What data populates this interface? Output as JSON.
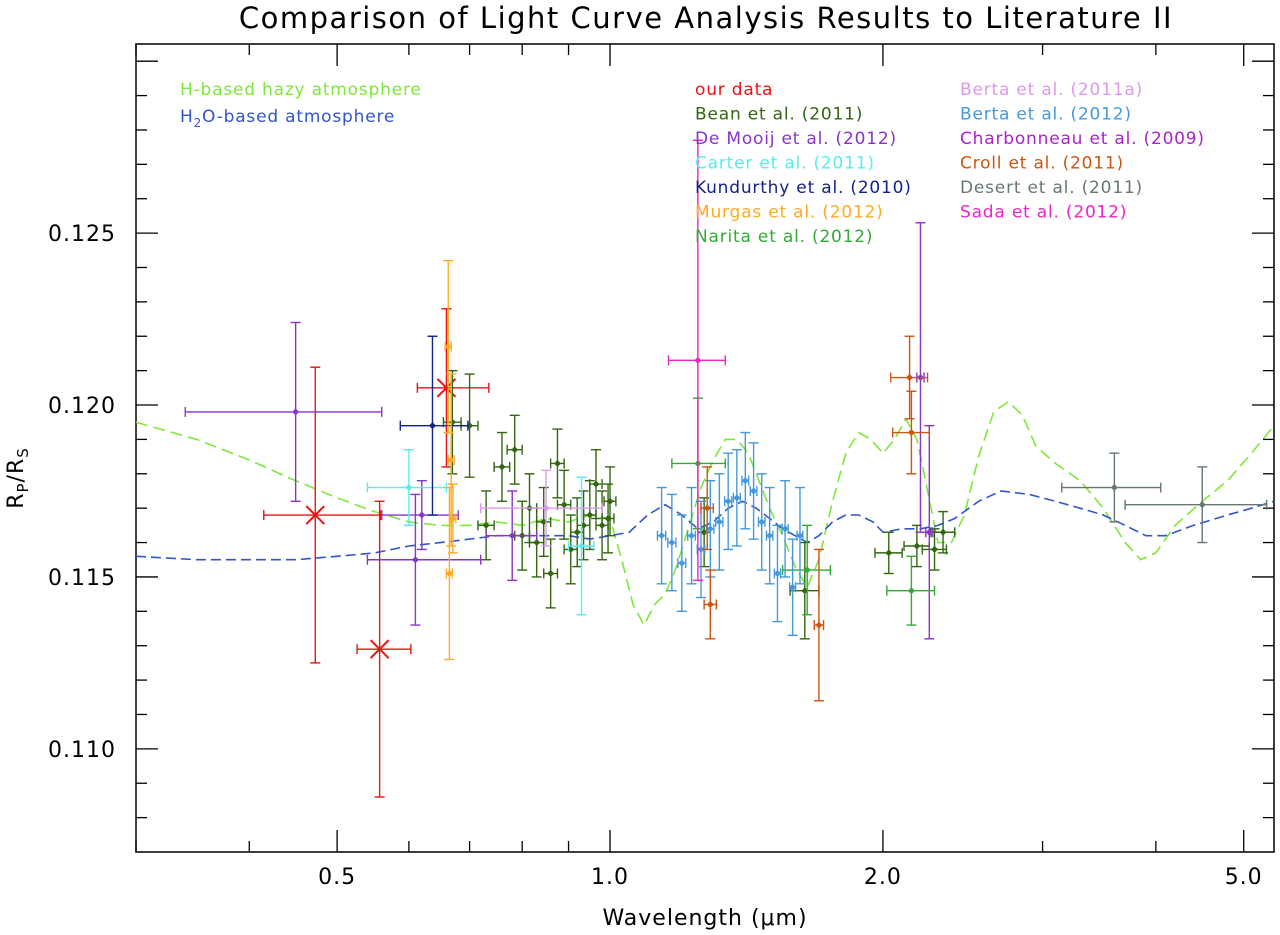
{
  "chart_data": {
    "type": "scatter",
    "title": "Comparison of Light Curve Analysis Results to Literature II",
    "xlabel": "Wavelength (μm)",
    "ylabel_main": "R",
    "ylabel_sub1": "P",
    "ylabel_slash": "/R",
    "ylabel_sub2": "S",
    "xscale": "log",
    "xlim": [
      0.3,
      5.4
    ],
    "ylim": [
      0.107,
      0.1305
    ],
    "grid": false,
    "legend_placement": "top",
    "x_ticks": [
      {
        "value": 0.5,
        "label": "0.5"
      },
      {
        "value": 1.0,
        "label": "1.0"
      },
      {
        "value": 2.0,
        "label": "2.0"
      },
      {
        "value": 5.0,
        "label": "5.0"
      }
    ],
    "y_ticks": [
      {
        "value": 0.11,
        "label": "0.110"
      },
      {
        "value": 0.115,
        "label": "0.115"
      },
      {
        "value": 0.12,
        "label": "0.120"
      },
      {
        "value": 0.125,
        "label": "0.125"
      }
    ],
    "models": [
      {
        "name": "H-based hazy atmosphere",
        "color": "#7ee83a",
        "dash": "12,6",
        "points": [
          [
            0.3,
            0.1195
          ],
          [
            0.35,
            0.119
          ],
          [
            0.4,
            0.1184
          ],
          [
            0.45,
            0.1178
          ],
          [
            0.5,
            0.1173
          ],
          [
            0.55,
            0.1169
          ],
          [
            0.6,
            0.1166
          ],
          [
            0.65,
            0.1165
          ],
          [
            0.7,
            0.1165
          ],
          [
            0.75,
            0.1166
          ],
          [
            0.8,
            0.1165
          ],
          [
            0.85,
            0.1167
          ],
          [
            0.9,
            0.1166
          ],
          [
            0.95,
            0.1168
          ],
          [
            1.0,
            0.1167
          ],
          [
            1.03,
            0.1155
          ],
          [
            1.06,
            0.1142
          ],
          [
            1.09,
            0.1136
          ],
          [
            1.12,
            0.1142
          ],
          [
            1.15,
            0.1145
          ],
          [
            1.18,
            0.1152
          ],
          [
            1.22,
            0.1164
          ],
          [
            1.26,
            0.1176
          ],
          [
            1.3,
            0.1184
          ],
          [
            1.34,
            0.119
          ],
          [
            1.38,
            0.119
          ],
          [
            1.42,
            0.1186
          ],
          [
            1.46,
            0.1178
          ],
          [
            1.5,
            0.117
          ],
          [
            1.55,
            0.1162
          ],
          [
            1.6,
            0.1153
          ],
          [
            1.65,
            0.1147
          ],
          [
            1.7,
            0.1155
          ],
          [
            1.76,
            0.1172
          ],
          [
            1.82,
            0.1186
          ],
          [
            1.88,
            0.1192
          ],
          [
            1.94,
            0.119
          ],
          [
            2.0,
            0.1186
          ],
          [
            2.06,
            0.119
          ],
          [
            2.12,
            0.1196
          ],
          [
            2.18,
            0.119
          ],
          [
            2.24,
            0.1175
          ],
          [
            2.3,
            0.116
          ],
          [
            2.38,
            0.116
          ],
          [
            2.46,
            0.1168
          ],
          [
            2.55,
            0.1185
          ],
          [
            2.65,
            0.1198
          ],
          [
            2.75,
            0.1201
          ],
          [
            2.85,
            0.1197
          ],
          [
            2.95,
            0.1188
          ],
          [
            3.1,
            0.1183
          ],
          [
            3.3,
            0.1178
          ],
          [
            3.5,
            0.117
          ],
          [
            3.7,
            0.116
          ],
          [
            3.85,
            0.1155
          ],
          [
            4.0,
            0.1157
          ],
          [
            4.2,
            0.1165
          ],
          [
            4.5,
            0.1172
          ],
          [
            4.8,
            0.1178
          ],
          [
            5.1,
            0.1186
          ],
          [
            5.4,
            0.1194
          ]
        ]
      },
      {
        "name": "H2O-based atmosphere",
        "color": "#3355cc",
        "dash": "10,5",
        "points": [
          [
            0.3,
            0.1156
          ],
          [
            0.35,
            0.1155
          ],
          [
            0.4,
            0.1155
          ],
          [
            0.45,
            0.1155
          ],
          [
            0.5,
            0.1156
          ],
          [
            0.55,
            0.1157
          ],
          [
            0.6,
            0.1159
          ],
          [
            0.65,
            0.116
          ],
          [
            0.7,
            0.1161
          ],
          [
            0.75,
            0.1162
          ],
          [
            0.8,
            0.1162
          ],
          [
            0.85,
            0.1162
          ],
          [
            0.9,
            0.1162
          ],
          [
            0.95,
            0.1161
          ],
          [
            1.0,
            0.1162
          ],
          [
            1.05,
            0.1163
          ],
          [
            1.1,
            0.1168
          ],
          [
            1.15,
            0.1171
          ],
          [
            1.2,
            0.1168
          ],
          [
            1.25,
            0.1164
          ],
          [
            1.3,
            0.1166
          ],
          [
            1.35,
            0.117
          ],
          [
            1.4,
            0.1172
          ],
          [
            1.45,
            0.117
          ],
          [
            1.5,
            0.1167
          ],
          [
            1.55,
            0.1164
          ],
          [
            1.6,
            0.1162
          ],
          [
            1.65,
            0.116
          ],
          [
            1.7,
            0.1162
          ],
          [
            1.76,
            0.1166
          ],
          [
            1.82,
            0.1168
          ],
          [
            1.88,
            0.1168
          ],
          [
            1.95,
            0.1166
          ],
          [
            2.0,
            0.1163
          ],
          [
            2.1,
            0.1164
          ],
          [
            2.2,
            0.1164
          ],
          [
            2.3,
            0.1165
          ],
          [
            2.4,
            0.1167
          ],
          [
            2.55,
            0.1172
          ],
          [
            2.7,
            0.1175
          ],
          [
            2.9,
            0.1174
          ],
          [
            3.1,
            0.1172
          ],
          [
            3.3,
            0.117
          ],
          [
            3.5,
            0.1168
          ],
          [
            3.7,
            0.1165
          ],
          [
            3.9,
            0.1162
          ],
          [
            4.1,
            0.1162
          ],
          [
            4.4,
            0.1165
          ],
          [
            4.8,
            0.1168
          ],
          [
            5.1,
            0.117
          ],
          [
            5.4,
            0.1172
          ]
        ]
      }
    ],
    "series": [
      {
        "name": "our data",
        "color": "#ee1111",
        "marker": "x",
        "points": [
          [
            0.473,
            0.1168,
            0.0043,
            0.058,
            0.085
          ],
          [
            0.557,
            0.1129,
            0.0043,
            0.031,
            0.046
          ],
          [
            0.66,
            0.1205,
            0.0023,
            0.047,
            0.075
          ]
        ]
      },
      {
        "name": "Bean et al. (2011)",
        "color": "#336611",
        "marker": "d",
        "points": [
          [
            0.67,
            0.1195,
            0.0015,
            0.015,
            0.015
          ],
          [
            0.7,
            0.1194,
            0.0015,
            0.015,
            0.015
          ],
          [
            0.73,
            0.1165,
            0.001,
            0.015,
            0.015
          ],
          [
            0.76,
            0.1182,
            0.001,
            0.015,
            0.015
          ],
          [
            0.785,
            0.1187,
            0.001,
            0.015,
            0.015
          ],
          [
            0.8,
            0.1162,
            0.001,
            0.015,
            0.015
          ],
          [
            0.815,
            0.117,
            0.001,
            0.015,
            0.015
          ],
          [
            0.83,
            0.116,
            0.001,
            0.015,
            0.015
          ],
          [
            0.845,
            0.1166,
            0.001,
            0.015,
            0.015
          ],
          [
            0.86,
            0.1151,
            0.001,
            0.015,
            0.015
          ],
          [
            0.875,
            0.1183,
            0.001,
            0.015,
            0.015
          ],
          [
            0.89,
            0.1171,
            0.001,
            0.015,
            0.015
          ],
          [
            0.905,
            0.1158,
            0.001,
            0.015,
            0.015
          ],
          [
            0.92,
            0.1163,
            0.001,
            0.015,
            0.015
          ],
          [
            0.935,
            0.1165,
            0.001,
            0.015,
            0.015
          ],
          [
            0.95,
            0.1168,
            0.001,
            0.015,
            0.015
          ],
          [
            0.965,
            0.1177,
            0.001,
            0.015,
            0.015
          ],
          [
            0.98,
            0.1165,
            0.001,
            0.015,
            0.015
          ],
          [
            0.995,
            0.1167,
            0.001,
            0.015,
            0.015
          ],
          [
            1.0,
            0.1172,
            0.001,
            0.015,
            0.015
          ],
          [
            1.27,
            0.1163,
            0.001,
            0.02,
            0.02
          ],
          [
            1.64,
            0.1146,
            0.0014,
            0.06,
            0.06
          ],
          [
            2.03,
            0.1157,
            0.0006,
            0.07,
            0.07
          ],
          [
            2.18,
            0.1159,
            0.0006,
            0.07,
            0.07
          ],
          [
            2.28,
            0.1158,
            0.0006,
            0.07,
            0.07
          ],
          [
            2.33,
            0.1163,
            0.0006,
            0.07,
            0.07
          ]
        ]
      },
      {
        "name": "De Mooij et al. (2012)",
        "color": "#8833cc",
        "marker": "d",
        "points": [
          [
            0.45,
            0.1198,
            0.0026,
            0.11,
            0.11
          ],
          [
            0.61,
            0.1155,
            0.0019,
            0.07,
            0.11
          ],
          [
            0.62,
            0.1168,
            0.001,
            0.06,
            0.06
          ],
          [
            0.78,
            0.1162,
            0.0013,
            0.05,
            0.05
          ],
          [
            2.2,
            0.1208,
            0.0045,
            0.02,
            0.02
          ],
          [
            2.25,
            0.1163,
            0.0031,
            0.02,
            0.02
          ]
        ]
      },
      {
        "name": "Carter et al. (2011)",
        "color": "#55eeee",
        "marker": "d",
        "points": [
          [
            0.6,
            0.1176,
            0.0011,
            0.06,
            0.06
          ],
          [
            0.93,
            0.1159,
            0.002,
            0.03,
            0.03
          ]
        ]
      },
      {
        "name": "Kundurthy et al. (2010)",
        "color": "#112288",
        "marker": "d",
        "points": [
          [
            0.637,
            0.1194,
            0.0026,
            0.05,
            0.06
          ]
        ]
      },
      {
        "name": "Murgas et al. (2012)",
        "color": "#ffaa22",
        "marker": "d",
        "points": [
          [
            0.663,
            0.1217,
            0.0025,
            0.005,
            0.005
          ],
          [
            0.665,
            0.1151,
            0.0025,
            0.005,
            0.005
          ],
          [
            0.668,
            0.1184,
            0.0025,
            0.005,
            0.005
          ],
          [
            0.671,
            0.1167,
            0.001,
            0.005,
            0.005
          ]
        ]
      },
      {
        "name": "Narita et al. (2012)",
        "color": "#33aa33",
        "marker": "d",
        "points": [
          [
            1.25,
            0.1183,
            0.0019,
            0.08,
            0.09
          ],
          [
            1.65,
            0.1152,
            0.0013,
            0.1,
            0.1
          ],
          [
            2.15,
            0.1146,
            0.001,
            0.13,
            0.13
          ]
        ]
      },
      {
        "name": "Berta et al. (2011a)",
        "color": "#dd99ee",
        "marker": "d",
        "points": [
          [
            0.85,
            0.117,
            0.0011,
            0.13,
            0.13
          ]
        ]
      },
      {
        "name": "Berta et al. (2012)",
        "color": "#4499dd",
        "marker": "d",
        "points": [
          [
            1.14,
            0.1162,
            0.0014,
            0.012,
            0.012
          ],
          [
            1.17,
            0.116,
            0.0014,
            0.012,
            0.012
          ],
          [
            1.2,
            0.1154,
            0.0014,
            0.012,
            0.012
          ],
          [
            1.23,
            0.1162,
            0.0014,
            0.012,
            0.012
          ],
          [
            1.26,
            0.1158,
            0.0014,
            0.012,
            0.012
          ],
          [
            1.29,
            0.1164,
            0.0014,
            0.012,
            0.012
          ],
          [
            1.32,
            0.1166,
            0.0014,
            0.012,
            0.012
          ],
          [
            1.35,
            0.1172,
            0.0014,
            0.012,
            0.012
          ],
          [
            1.38,
            0.1173,
            0.0014,
            0.012,
            0.012
          ],
          [
            1.41,
            0.1178,
            0.0014,
            0.012,
            0.012
          ],
          [
            1.44,
            0.1175,
            0.0014,
            0.012,
            0.012
          ],
          [
            1.47,
            0.1166,
            0.0014,
            0.012,
            0.012
          ],
          [
            1.5,
            0.1162,
            0.0014,
            0.012,
            0.012
          ],
          [
            1.53,
            0.1151,
            0.0014,
            0.012,
            0.012
          ],
          [
            1.56,
            0.1164,
            0.0014,
            0.012,
            0.012
          ],
          [
            1.59,
            0.1147,
            0.0014,
            0.012,
            0.012
          ],
          [
            1.62,
            0.1162,
            0.0014,
            0.012,
            0.012
          ]
        ]
      },
      {
        "name": "Charbonneau et al. (2009)",
        "color": "#aa22cc",
        "marker": "d",
        "points": []
      },
      {
        "name": "Croll et al. (2011)",
        "color": "#cc5511",
        "marker": "d",
        "points": [
          [
            1.28,
            0.117,
            0.0012,
            0.02,
            0.02
          ],
          [
            1.29,
            0.1142,
            0.001,
            0.02,
            0.02
          ],
          [
            1.7,
            0.1136,
            0.0022,
            0.02,
            0.02
          ],
          [
            2.14,
            0.1208,
            0.0012,
            0.1,
            0.1
          ],
          [
            2.15,
            0.1192,
            0.0012,
            0.1,
            0.1
          ]
        ]
      },
      {
        "name": "Desert et al. (2011)",
        "color": "#667777",
        "marker": "d",
        "points": [
          [
            3.6,
            0.1176,
            0.001,
            0.45,
            0.45
          ],
          [
            4.5,
            0.1171,
            0.0011,
            0.8,
            0.8
          ]
        ]
      },
      {
        "name": "Sada et al. (2012)",
        "color": "#ee22cc",
        "marker": "d",
        "points": [
          [
            1.25,
            0.1213,
            0.0064,
            0.09,
            0.09
          ]
        ]
      }
    ]
  }
}
